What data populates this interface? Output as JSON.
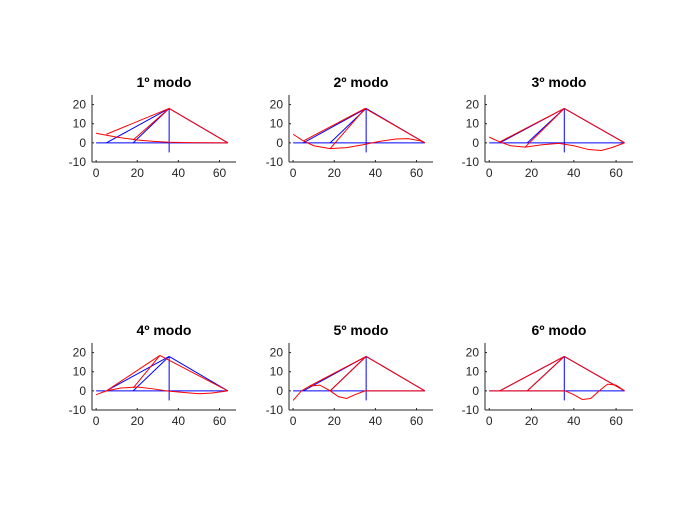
{
  "chart_data": [
    {
      "type": "line",
      "title": "1º modo",
      "xlabel": "",
      "ylabel": "",
      "xlim": [
        -2,
        68
      ],
      "ylim": [
        -10,
        25
      ],
      "xticks": [
        0,
        20,
        40,
        60
      ],
      "yticks": [
        -10,
        0,
        10,
        20
      ],
      "series": [
        {
          "color": "#0000ff",
          "segments": [
            [
              [
                0,
                0
              ],
              [
                64,
                0
              ]
            ],
            [
              [
                35.5,
                -5
              ],
              [
                35.5,
                18
              ]
            ],
            [
              [
                5,
                0
              ],
              [
                35.5,
                18
              ]
            ],
            [
              [
                18,
                0
              ],
              [
                35.5,
                18
              ]
            ],
            [
              [
                35.5,
                18
              ],
              [
                64,
                0
              ]
            ]
          ]
        },
        {
          "color": "#ff0000",
          "segments": [
            [
              [
                0,
                5
              ],
              [
                10,
                3
              ],
              [
                20,
                1.5
              ],
              [
                28,
                0.8
              ],
              [
                35.5,
                0.3
              ],
              [
                45,
                0.1
              ],
              [
                64,
                0
              ]
            ],
            [
              [
                5,
                4.5
              ],
              [
                35.5,
                18
              ]
            ],
            [
              [
                18,
                1.5
              ],
              [
                35.5,
                18
              ]
            ],
            [
              [
                35.5,
                18
              ],
              [
                64,
                0
              ]
            ]
          ]
        }
      ]
    },
    {
      "type": "line",
      "title": "2º modo",
      "xlabel": "",
      "ylabel": "",
      "xlim": [
        -2,
        68
      ],
      "ylim": [
        -10,
        25
      ],
      "xticks": [
        0,
        20,
        40,
        60
      ],
      "yticks": [
        -10,
        0,
        10,
        20
      ],
      "series": [
        {
          "color": "#0000ff",
          "segments": [
            [
              [
                0,
                0
              ],
              [
                64,
                0
              ]
            ],
            [
              [
                35.5,
                -5
              ],
              [
                35.5,
                18
              ]
            ],
            [
              [
                5,
                0
              ],
              [
                35.5,
                18
              ]
            ],
            [
              [
                18,
                0
              ],
              [
                35.5,
                18
              ]
            ],
            [
              [
                35.5,
                18
              ],
              [
                64,
                0
              ]
            ]
          ]
        },
        {
          "color": "#ff0000",
          "segments": [
            [
              [
                0,
                4.5
              ],
              [
                5,
                1
              ],
              [
                10,
                -1.5
              ],
              [
                18,
                -3
              ],
              [
                26,
                -2.5
              ],
              [
                34,
                -1
              ],
              [
                42,
                0.8
              ],
              [
                50,
                2
              ],
              [
                56,
                2.2
              ],
              [
                62,
                1
              ],
              [
                64,
                0
              ]
            ],
            [
              [
                5,
                1
              ],
              [
                35,
                18
              ]
            ],
            [
              [
                18,
                -3
              ],
              [
                35,
                18
              ]
            ],
            [
              [
                35,
                18
              ],
              [
                64,
                0
              ]
            ]
          ]
        }
      ]
    },
    {
      "type": "line",
      "title": "3º modo",
      "xlabel": "",
      "ylabel": "",
      "xlim": [
        -2,
        68
      ],
      "ylim": [
        -10,
        25
      ],
      "xticks": [
        0,
        20,
        40,
        60
      ],
      "yticks": [
        -10,
        0,
        10,
        20
      ],
      "series": [
        {
          "color": "#0000ff",
          "segments": [
            [
              [
                0,
                0
              ],
              [
                64,
                0
              ]
            ],
            [
              [
                35.5,
                -5
              ],
              [
                35.5,
                18
              ]
            ],
            [
              [
                5,
                0
              ],
              [
                35.5,
                18
              ]
            ],
            [
              [
                18,
                0
              ],
              [
                35.5,
                18
              ]
            ],
            [
              [
                35.5,
                18
              ],
              [
                64,
                0
              ]
            ]
          ]
        },
        {
          "color": "#ff0000",
          "segments": [
            [
              [
                0,
                3
              ],
              [
                5,
                0.5
              ],
              [
                10,
                -1.5
              ],
              [
                17,
                -2.2
              ],
              [
                25,
                -1
              ],
              [
                33,
                -0.3
              ],
              [
                40,
                -1.5
              ],
              [
                47,
                -3.5
              ],
              [
                53,
                -4
              ],
              [
                58,
                -2.5
              ],
              [
                64,
                0
              ]
            ],
            [
              [
                5,
                0.5
              ],
              [
                35.5,
                18
              ]
            ],
            [
              [
                17,
                -2.2
              ],
              [
                35.5,
                18
              ]
            ],
            [
              [
                35.5,
                18
              ],
              [
                64,
                0
              ]
            ]
          ]
        }
      ]
    },
    {
      "type": "line",
      "title": "4º modo",
      "xlabel": "",
      "ylabel": "",
      "xlim": [
        -2,
        68
      ],
      "ylim": [
        -10,
        25
      ],
      "xticks": [
        0,
        20,
        40,
        60
      ],
      "yticks": [
        -10,
        0,
        10,
        20
      ],
      "series": [
        {
          "color": "#0000ff",
          "segments": [
            [
              [
                0,
                0
              ],
              [
                64,
                0
              ]
            ],
            [
              [
                35.5,
                -5
              ],
              [
                35.5,
                18
              ]
            ],
            [
              [
                5,
                0
              ],
              [
                35.5,
                18
              ]
            ],
            [
              [
                18,
                0
              ],
              [
                35.5,
                18
              ]
            ],
            [
              [
                35.5,
                18
              ],
              [
                64,
                0
              ]
            ]
          ]
        },
        {
          "color": "#ff0000",
          "segments": [
            [
              [
                0,
                -2
              ],
              [
                5,
                0
              ],
              [
                12,
                1.5
              ],
              [
                20,
                2
              ],
              [
                28,
                1
              ],
              [
                34,
                0
              ],
              [
                42,
                -0.8
              ],
              [
                50,
                -1.5
              ],
              [
                56,
                -1.2
              ],
              [
                64,
                0
              ]
            ],
            [
              [
                5,
                0
              ],
              [
                31,
                18.5
              ]
            ],
            [
              [
                18,
                1.5
              ],
              [
                31,
                18.5
              ]
            ],
            [
              [
                31,
                18.5
              ],
              [
                64,
                0
              ]
            ]
          ]
        }
      ]
    },
    {
      "type": "line",
      "title": "5º modo",
      "xlabel": "",
      "ylabel": "",
      "xlim": [
        -2,
        68
      ],
      "ylim": [
        -10,
        25
      ],
      "xticks": [
        0,
        20,
        40,
        60
      ],
      "yticks": [
        -10,
        0,
        10,
        20
      ],
      "series": [
        {
          "color": "#0000ff",
          "segments": [
            [
              [
                0,
                0
              ],
              [
                64,
                0
              ]
            ],
            [
              [
                35.5,
                -5
              ],
              [
                35.5,
                18
              ]
            ],
            [
              [
                5,
                0
              ],
              [
                35.5,
                18
              ]
            ],
            [
              [
                18,
                0
              ],
              [
                35.5,
                18
              ]
            ],
            [
              [
                35.5,
                18
              ],
              [
                64,
                0
              ]
            ]
          ]
        },
        {
          "color": "#ff0000",
          "segments": [
            [
              [
                0,
                -5
              ],
              [
                4,
                0
              ],
              [
                8,
                2.5
              ],
              [
                13,
                3
              ],
              [
                18,
                0
              ],
              [
                22,
                -3
              ],
              [
                26,
                -4
              ],
              [
                30,
                -2
              ],
              [
                35,
                0
              ],
              [
                45,
                0
              ],
              [
                55,
                0
              ],
              [
                64,
                0
              ]
            ],
            [
              [
                8,
                2.5
              ],
              [
                35.5,
                18
              ]
            ],
            [
              [
                18,
                0
              ],
              [
                35.5,
                18
              ]
            ],
            [
              [
                35.5,
                18
              ],
              [
                64,
                0
              ]
            ]
          ]
        }
      ]
    },
    {
      "type": "line",
      "title": "6º modo",
      "xlabel": "",
      "ylabel": "",
      "xlim": [
        -2,
        68
      ],
      "ylim": [
        -10,
        25
      ],
      "xticks": [
        0,
        20,
        40,
        60
      ],
      "yticks": [
        -10,
        0,
        10,
        20
      ],
      "series": [
        {
          "color": "#0000ff",
          "segments": [
            [
              [
                0,
                0
              ],
              [
                64,
                0
              ]
            ],
            [
              [
                35.5,
                -5
              ],
              [
                35.5,
                18
              ]
            ],
            [
              [
                5,
                0
              ],
              [
                35.5,
                18
              ]
            ],
            [
              [
                18,
                0
              ],
              [
                35.5,
                18
              ]
            ],
            [
              [
                35.5,
                18
              ],
              [
                64,
                0
              ]
            ]
          ]
        },
        {
          "color": "#ff0000",
          "segments": [
            [
              [
                0,
                0
              ],
              [
                10,
                0
              ],
              [
                20,
                0
              ],
              [
                30,
                0
              ],
              [
                36,
                0
              ],
              [
                40,
                -2
              ],
              [
                44,
                -4.5
              ],
              [
                48,
                -4
              ],
              [
                52,
                0
              ],
              [
                56,
                3.5
              ],
              [
                60,
                3
              ],
              [
                64,
                0
              ]
            ],
            [
              [
                5,
                0
              ],
              [
                35.5,
                18
              ]
            ],
            [
              [
                18,
                0
              ],
              [
                35.5,
                18
              ]
            ],
            [
              [
                35.5,
                18
              ],
              [
                64,
                0
              ]
            ]
          ]
        }
      ]
    }
  ]
}
